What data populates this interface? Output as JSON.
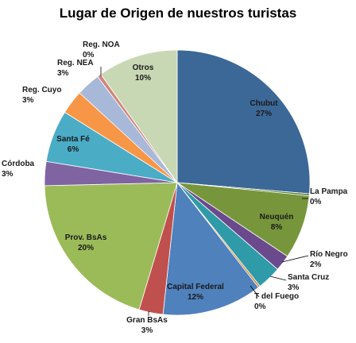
{
  "chart_data": {
    "type": "pie",
    "title": "Lugar de Origen de nuestros  turistas",
    "slices": [
      {
        "label": "Chubut",
        "pct_label": "27%",
        "value": 27,
        "color": "#3c6898"
      },
      {
        "label": "La Pampa",
        "pct_label": "0%",
        "value": 0.25,
        "color": "#55802c"
      },
      {
        "label": "Neuquén",
        "pct_label": "8%",
        "value": 8,
        "color": "#77963c"
      },
      {
        "label": "Río Negro",
        "pct_label": "2%",
        "value": 2,
        "color": "#6a4a8c"
      },
      {
        "label": "Santa Cruz",
        "pct_label": "3%",
        "value": 3,
        "color": "#2f9aa8"
      },
      {
        "label": "T del Fuego",
        "pct_label": "0%",
        "value": 0.25,
        "color": "#d8842c"
      },
      {
        "label": "Capital  Federal",
        "pct_label": "12%",
        "value": 12.5,
        "color": "#4f81bd"
      },
      {
        "label": "Gran BsAs",
        "pct_label": "3%",
        "value": 3,
        "color": "#c0504d"
      },
      {
        "label": "Prov. BsAs",
        "pct_label": "20%",
        "value": 20.5,
        "color": "#9bbb59"
      },
      {
        "label": "Córdoba",
        "pct_label": "3%",
        "value": 3,
        "color": "#8064a2"
      },
      {
        "label": "Santa Fé",
        "pct_label": "6%",
        "value": 6.5,
        "color": "#4bacc6"
      },
      {
        "label": "Reg. Cuyo",
        "pct_label": "3%",
        "value": 3,
        "color": "#f79646"
      },
      {
        "label": "Reg. NEA",
        "pct_label": "3%",
        "value": 3,
        "color": "#a8b8d8"
      },
      {
        "label": "Reg. NOA",
        "pct_label": "0%",
        "value": 0.5,
        "color": "#d0877c"
      },
      {
        "label": "Otros",
        "pct_label": "10%",
        "value": 10,
        "color": "#c9d8b4"
      }
    ]
  }
}
